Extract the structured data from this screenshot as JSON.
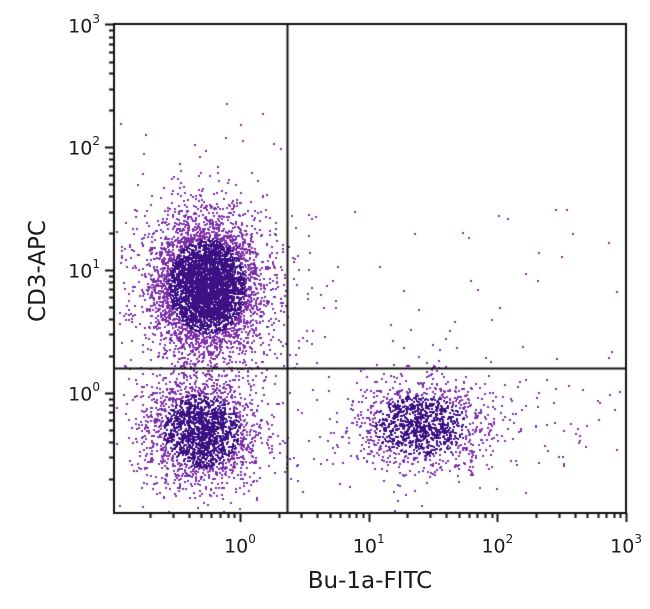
{
  "chart_data": {
    "type": "scatter",
    "subtype": "flow-cytometry-quadrant-dot-plot",
    "title": "",
    "xlabel": "Bu-1a-FITC",
    "ylabel": "CD3-APC",
    "x_scale": "log",
    "y_scale": "log",
    "xlim": [
      0.15,
      1000
    ],
    "ylim": [
      0.15,
      1000
    ],
    "x_ticks": [
      {
        "base": "10",
        "exp": "0",
        "value": 1
      },
      {
        "base": "10",
        "exp": "1",
        "value": 10
      },
      {
        "base": "10",
        "exp": "2",
        "value": 100
      },
      {
        "base": "10",
        "exp": "3",
        "value": 1000
      }
    ],
    "y_ticks": [
      {
        "base": "10",
        "exp": "0",
        "value": 1
      },
      {
        "base": "10",
        "exp": "1",
        "value": 10
      },
      {
        "base": "10",
        "exp": "2",
        "value": 100
      },
      {
        "base": "10",
        "exp": "3",
        "value": 1000
      }
    ],
    "grid": false,
    "legend": null,
    "quadrant_gates": {
      "x_threshold": 2.3,
      "y_threshold": 1.6
    },
    "populations": [
      {
        "name": "CD3+ Bu-1a- (upper-left)",
        "quadrant": "UL",
        "center_x": 0.55,
        "center_y": 7.5,
        "spread_x_decades": 0.2,
        "spread_y_decades": 0.26,
        "approx_events": 5200
      },
      {
        "name": "CD3- Bu-1a- (lower-left)",
        "quadrant": "LL",
        "center_x": 0.5,
        "center_y": 0.5,
        "spread_x_decades": 0.2,
        "spread_y_decades": 0.2,
        "approx_events": 2300
      },
      {
        "name": "CD3- Bu-1a+ (lower-right)",
        "quadrant": "LR",
        "center_x": 25,
        "center_y": 0.55,
        "spread_x_decades": 0.24,
        "spread_y_decades": 0.17,
        "approx_events": 1400
      },
      {
        "name": "CD3+ Bu-1a+ (upper-right, sparse)",
        "quadrant": "UR",
        "approx_events": 45
      }
    ],
    "colors": {
      "dense_dot": "#3d1184",
      "sparse_dot": "#7b2fa8",
      "axis": "#111111",
      "gate_line": "#111111"
    }
  }
}
